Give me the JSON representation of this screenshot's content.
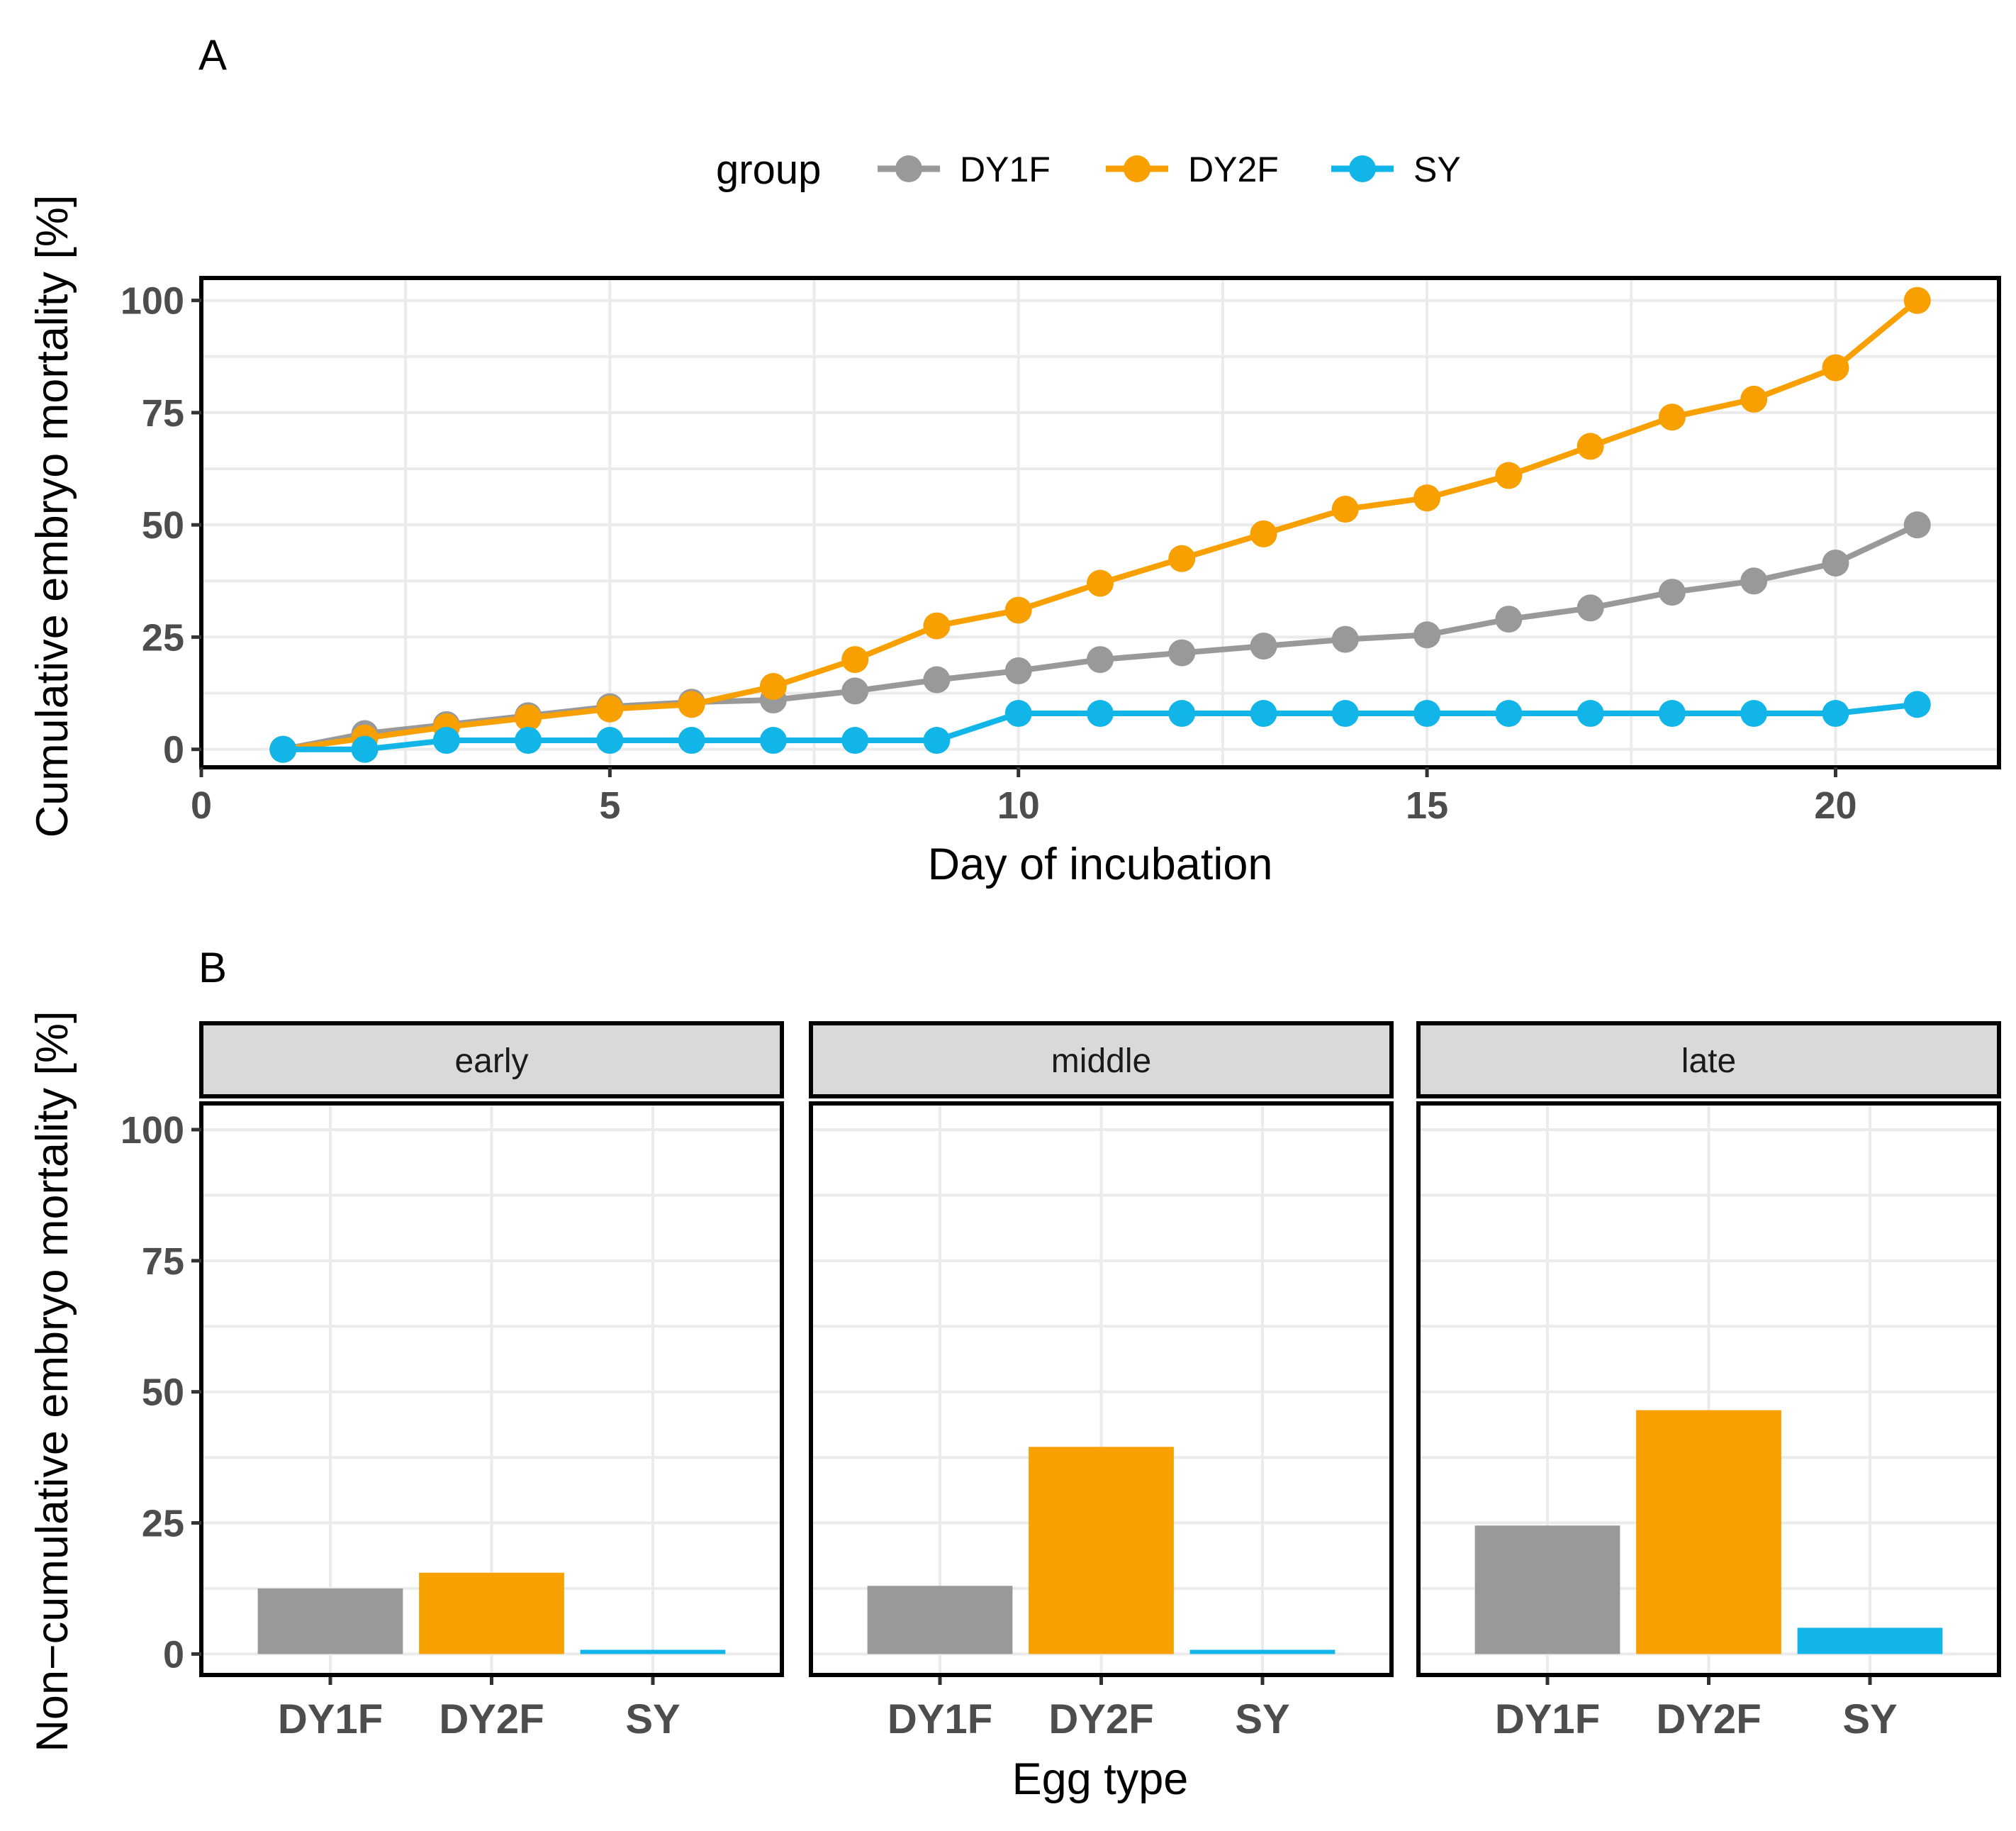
{
  "colors": {
    "DY1F": "#999999",
    "DY2F": "#f7a000",
    "SY": "#12b5e8"
  },
  "panel_a": {
    "label": "A",
    "legend_title": "group",
    "xlabel": "Day of incubation",
    "ylabel": "Cumulative embryo mortality [%]"
  },
  "panel_b": {
    "label": "B",
    "xlabel": "Egg type",
    "ylabel": "Non−cumulative embryo mortality [%]"
  },
  "chart_data": [
    {
      "type": "line",
      "title": "A",
      "xlabel": "Day of incubation",
      "ylabel": "Cumulative embryo mortality [%]",
      "xlim": [
        0,
        22
      ],
      "ylim": [
        -4,
        105
      ],
      "xticks": [
        "0",
        "5",
        "10",
        "15",
        "20"
      ],
      "yticks": [
        "0",
        "25",
        "50",
        "75",
        "100"
      ],
      "legend_title": "group",
      "legend_position": "top",
      "x": [
        1,
        2,
        3,
        4,
        5,
        6,
        7,
        8,
        9,
        10,
        11,
        12,
        13,
        14,
        15,
        16,
        17,
        18,
        19,
        20,
        21
      ],
      "series": [
        {
          "name": "DY1F",
          "values": [
            0,
            3.5,
            5.5,
            7.5,
            9.5,
            10.5,
            11,
            13,
            15.5,
            17.5,
            20,
            21.5,
            23,
            24.5,
            25.5,
            29,
            31.5,
            35,
            37.5,
            41.5,
            50
          ]
        },
        {
          "name": "DY2F",
          "values": [
            0,
            2.5,
            5,
            7,
            9,
            10,
            14,
            20,
            27.5,
            31,
            37,
            42.5,
            48,
            53.5,
            56,
            61,
            67.5,
            74,
            78,
            85,
            100
          ]
        },
        {
          "name": "SY",
          "values": [
            0,
            0,
            2,
            2,
            2,
            2,
            2,
            2,
            2,
            8,
            8,
            8,
            8,
            8,
            8,
            8,
            8,
            8,
            8,
            8,
            10
          ]
        }
      ]
    },
    {
      "type": "bar",
      "title": "B",
      "xlabel": "Egg type",
      "ylabel": "Non−cumulative embryo mortality [%]",
      "ylim": [
        -4,
        105
      ],
      "yticks": [
        "0",
        "25",
        "50",
        "75",
        "100"
      ],
      "categories": [
        "DY1F",
        "DY2F",
        "SY"
      ],
      "facets": [
        {
          "name": "early",
          "values": [
            12.5,
            15.5,
            0.8
          ]
        },
        {
          "name": "middle",
          "values": [
            13,
            39.5,
            0.8
          ]
        },
        {
          "name": "late",
          "values": [
            24.5,
            46.5,
            5
          ]
        }
      ]
    }
  ]
}
